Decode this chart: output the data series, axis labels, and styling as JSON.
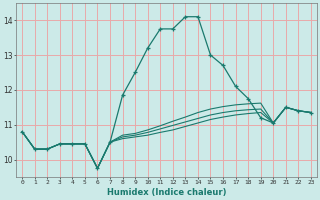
{
  "xlabel": "Humidex (Indice chaleur)",
  "xlim": [
    -0.5,
    23.5
  ],
  "ylim": [
    9.5,
    14.5
  ],
  "yticks": [
    10,
    11,
    12,
    13,
    14
  ],
  "xticks": [
    0,
    1,
    2,
    3,
    4,
    5,
    6,
    7,
    8,
    9,
    10,
    11,
    12,
    13,
    14,
    15,
    16,
    17,
    18,
    19,
    20,
    21,
    22,
    23
  ],
  "xtick_labels": [
    "0",
    "1",
    "2",
    "3",
    "4",
    "5",
    "6",
    "7",
    "8",
    "9",
    "10",
    "11",
    "12",
    "13",
    "14",
    "15",
    "16",
    "17",
    "18",
    "19",
    "20",
    "21",
    "22",
    "23"
  ],
  "bg_color": "#cceae8",
  "grid_color": "#e8aaaa",
  "line_color": "#1a7a6e",
  "series_main": [
    10.8,
    10.3,
    10.3,
    10.45,
    10.45,
    10.45,
    9.75,
    10.5,
    11.85,
    12.5,
    13.2,
    13.75,
    13.75,
    14.1,
    14.1,
    13.0,
    12.7,
    12.1,
    11.75,
    11.2,
    11.05,
    11.5,
    11.4,
    11.35
  ],
  "series2": [
    10.8,
    10.3,
    10.3,
    10.45,
    10.45,
    10.45,
    9.75,
    10.5,
    10.6,
    10.65,
    10.7,
    10.78,
    10.85,
    10.95,
    11.05,
    11.15,
    11.22,
    11.28,
    11.32,
    11.35,
    11.05,
    11.5,
    11.4,
    11.35
  ],
  "series3": [
    10.8,
    10.3,
    10.3,
    10.45,
    10.45,
    10.45,
    9.75,
    10.5,
    10.65,
    10.7,
    10.78,
    10.88,
    10.98,
    11.08,
    11.18,
    11.28,
    11.35,
    11.4,
    11.43,
    11.45,
    11.05,
    11.5,
    11.4,
    11.35
  ],
  "series4": [
    10.8,
    10.3,
    10.3,
    10.45,
    10.45,
    10.45,
    9.75,
    10.5,
    10.7,
    10.75,
    10.85,
    10.97,
    11.1,
    11.22,
    11.35,
    11.45,
    11.52,
    11.57,
    11.6,
    11.62,
    11.05,
    11.5,
    11.4,
    11.35
  ]
}
